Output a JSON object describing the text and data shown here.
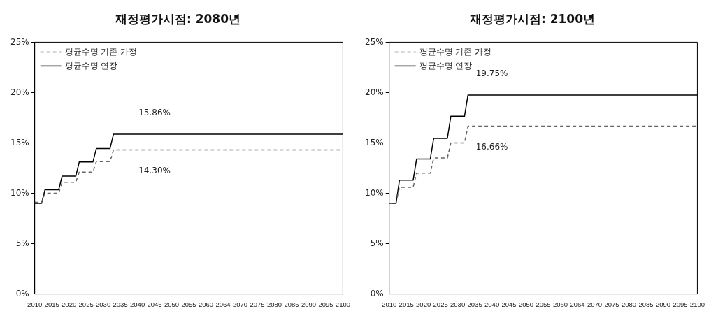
{
  "chart_data": [
    {
      "type": "line",
      "title": "재정평가시점: 2080년",
      "marker": "none",
      "legend": "top left",
      "categories": [
        "2010",
        null,
        null,
        null,
        null,
        "2015",
        null,
        null,
        null,
        null,
        "2020",
        null,
        null,
        null,
        null,
        "2025",
        null,
        null,
        null,
        null,
        "2030",
        null,
        null,
        null,
        null,
        "2035",
        null,
        null,
        null,
        null,
        "2040",
        null,
        null,
        null,
        null,
        "2045",
        null,
        null,
        null,
        null,
        "2050",
        null,
        null,
        null,
        null,
        "2055",
        null,
        null,
        null,
        null,
        "2060",
        null,
        null,
        null,
        null,
        "2064",
        null,
        null,
        null,
        null,
        "2070",
        null,
        null,
        null,
        null,
        "2075",
        null,
        null,
        null,
        null,
        "2080",
        null,
        null,
        null,
        null,
        "2085",
        null,
        null,
        null,
        null,
        "2090",
        null,
        null,
        null,
        null,
        "2095",
        null,
        null,
        null,
        null,
        "2100"
      ],
      "ylim": [
        0,
        25
      ],
      "yticks": [
        {
          "value": 0,
          "label": "0%"
        },
        {
          "value": 5,
          "label": "5%"
        },
        {
          "value": 10,
          "label": "10%"
        },
        {
          "value": 15,
          "label": "15%"
        },
        {
          "value": 20,
          "label": "20%"
        },
        {
          "value": 25,
          "label": "25%"
        }
      ],
      "annotations": [
        {
          "text": "15.86%",
          "x": "2045",
          "y": 15.86
        },
        {
          "text": "14.30%",
          "x": "2045",
          "y": 14.3
        }
      ],
      "series": [
        {
          "name": "평균수명 기존 가정",
          "color": "#666666",
          "line_style": "dashed",
          "values": [
            9.1,
            9.1,
            9.1,
            10.0,
            10.0,
            10.0,
            10.0,
            10.0,
            11.1,
            11.1,
            11.1,
            11.1,
            11.1,
            12.1,
            12.1,
            12.1,
            12.1,
            12.1,
            13.15,
            13.15,
            13.15,
            13.15,
            13.15,
            14.3,
            14.3,
            14.3,
            14.3,
            14.3,
            14.3,
            14.3,
            14.3,
            14.3,
            14.3,
            14.3,
            14.3,
            14.3,
            14.3,
            14.3,
            14.3,
            14.3,
            14.3,
            14.3,
            14.3,
            14.3,
            14.3,
            14.3,
            14.3,
            14.3,
            14.3,
            14.3,
            14.3,
            14.3,
            14.3,
            14.3,
            14.3,
            14.3,
            14.3,
            14.3,
            14.3,
            14.3,
            14.3,
            14.3,
            14.3,
            14.3,
            14.3,
            14.3,
            14.3,
            14.3,
            14.3,
            14.3,
            14.3,
            14.3,
            14.3,
            14.3,
            14.3,
            14.3,
            14.3,
            14.3,
            14.3,
            14.3,
            14.3,
            14.3,
            14.3,
            14.3,
            14.3,
            14.3,
            14.3,
            14.3,
            14.3,
            14.3,
            14.3
          ]
        },
        {
          "name": "평균수명 연장",
          "color": "#000000",
          "line_style": "solid",
          "values": [
            9.0,
            9.0,
            9.0,
            10.35,
            10.35,
            10.35,
            10.35,
            10.35,
            11.7,
            11.7,
            11.7,
            11.7,
            11.7,
            13.1,
            13.1,
            13.1,
            13.1,
            13.1,
            14.45,
            14.45,
            14.45,
            14.45,
            14.45,
            15.86,
            15.86,
            15.86,
            15.86,
            15.86,
            15.86,
            15.86,
            15.86,
            15.86,
            15.86,
            15.86,
            15.86,
            15.86,
            15.86,
            15.86,
            15.86,
            15.86,
            15.86,
            15.86,
            15.86,
            15.86,
            15.86,
            15.86,
            15.86,
            15.86,
            15.86,
            15.86,
            15.86,
            15.86,
            15.86,
            15.86,
            15.86,
            15.86,
            15.86,
            15.86,
            15.86,
            15.86,
            15.86,
            15.86,
            15.86,
            15.86,
            15.86,
            15.86,
            15.86,
            15.86,
            15.86,
            15.86,
            15.86,
            15.86,
            15.86,
            15.86,
            15.86,
            15.86,
            15.86,
            15.86,
            15.86,
            15.86,
            15.86,
            15.86,
            15.86,
            15.86,
            15.86,
            15.86,
            15.86,
            15.86,
            15.86,
            15.86,
            15.86
          ]
        }
      ]
    },
    {
      "type": "line",
      "title": "재정평가시점: 2100년",
      "marker": "none",
      "legend": "top left",
      "categories": [
        "2010",
        null,
        null,
        null,
        null,
        "2015",
        null,
        null,
        null,
        null,
        "2020",
        null,
        null,
        null,
        null,
        "2025",
        null,
        null,
        null,
        null,
        "2030",
        null,
        null,
        null,
        null,
        "2035",
        null,
        null,
        null,
        null,
        "2040",
        null,
        null,
        null,
        null,
        "2045",
        null,
        null,
        null,
        null,
        "2050",
        null,
        null,
        null,
        null,
        "2055",
        null,
        null,
        null,
        null,
        "2060",
        null,
        null,
        null,
        null,
        "2064",
        null,
        null,
        null,
        null,
        "2070",
        null,
        null,
        null,
        null,
        "2075",
        null,
        null,
        null,
        null,
        "2080",
        null,
        null,
        null,
        null,
        "2085",
        null,
        null,
        null,
        null,
        "2090",
        null,
        null,
        null,
        null,
        "2095",
        null,
        null,
        null,
        null,
        "2100"
      ],
      "ylim": [
        0,
        25
      ],
      "yticks": [
        {
          "value": 0,
          "label": "0%"
        },
        {
          "value": 5,
          "label": "5%"
        },
        {
          "value": 10,
          "label": "10%"
        },
        {
          "value": 15,
          "label": "15%"
        },
        {
          "value": 20,
          "label": "20%"
        },
        {
          "value": 25,
          "label": "25%"
        }
      ],
      "annotations": [
        {
          "text": "19.75%",
          "x": "2040",
          "y": 19.75
        },
        {
          "text": "16.66%",
          "x": "2040",
          "y": 16.66
        }
      ],
      "series": [
        {
          "name": "평균수명 기존 가정",
          "color": "#666666",
          "line_style": "dashed",
          "values": [
            9.0,
            9.0,
            9.0,
            10.6,
            10.6,
            10.6,
            10.6,
            10.6,
            12.0,
            12.0,
            12.0,
            12.0,
            12.0,
            13.5,
            13.5,
            13.5,
            13.5,
            13.5,
            15.0,
            15.0,
            15.0,
            15.0,
            15.0,
            16.66,
            16.66,
            16.66,
            16.66,
            16.66,
            16.66,
            16.66,
            16.66,
            16.66,
            16.66,
            16.66,
            16.66,
            16.66,
            16.66,
            16.66,
            16.66,
            16.66,
            16.66,
            16.66,
            16.66,
            16.66,
            16.66,
            16.66,
            16.66,
            16.66,
            16.66,
            16.66,
            16.66,
            16.66,
            16.66,
            16.66,
            16.66,
            16.66,
            16.66,
            16.66,
            16.66,
            16.66,
            16.66,
            16.66,
            16.66,
            16.66,
            16.66,
            16.66,
            16.66,
            16.66,
            16.66,
            16.66,
            16.66,
            16.66,
            16.66,
            16.66,
            16.66,
            16.66,
            16.66,
            16.66,
            16.66,
            16.66,
            16.66,
            16.66,
            16.66,
            16.66,
            16.66,
            16.66,
            16.66,
            16.66,
            16.66,
            16.66,
            16.66
          ]
        },
        {
          "name": "평균수명 연장",
          "color": "#000000",
          "line_style": "solid",
          "values": [
            9.0,
            9.0,
            9.0,
            11.3,
            11.3,
            11.3,
            11.3,
            11.3,
            13.4,
            13.4,
            13.4,
            13.4,
            13.4,
            15.45,
            15.45,
            15.45,
            15.45,
            15.45,
            17.65,
            17.65,
            17.65,
            17.65,
            17.65,
            19.75,
            19.75,
            19.75,
            19.75,
            19.75,
            19.75,
            19.75,
            19.75,
            19.75,
            19.75,
            19.75,
            19.75,
            19.75,
            19.75,
            19.75,
            19.75,
            19.75,
            19.75,
            19.75,
            19.75,
            19.75,
            19.75,
            19.75,
            19.75,
            19.75,
            19.75,
            19.75,
            19.75,
            19.75,
            19.75,
            19.75,
            19.75,
            19.75,
            19.75,
            19.75,
            19.75,
            19.75,
            19.75,
            19.75,
            19.75,
            19.75,
            19.75,
            19.75,
            19.75,
            19.75,
            19.75,
            19.75,
            19.75,
            19.75,
            19.75,
            19.75,
            19.75,
            19.75,
            19.75,
            19.75,
            19.75,
            19.75,
            19.75,
            19.75,
            19.75,
            19.75,
            19.75,
            19.75,
            19.75,
            19.75,
            19.75,
            19.75,
            19.75
          ]
        }
      ]
    }
  ]
}
